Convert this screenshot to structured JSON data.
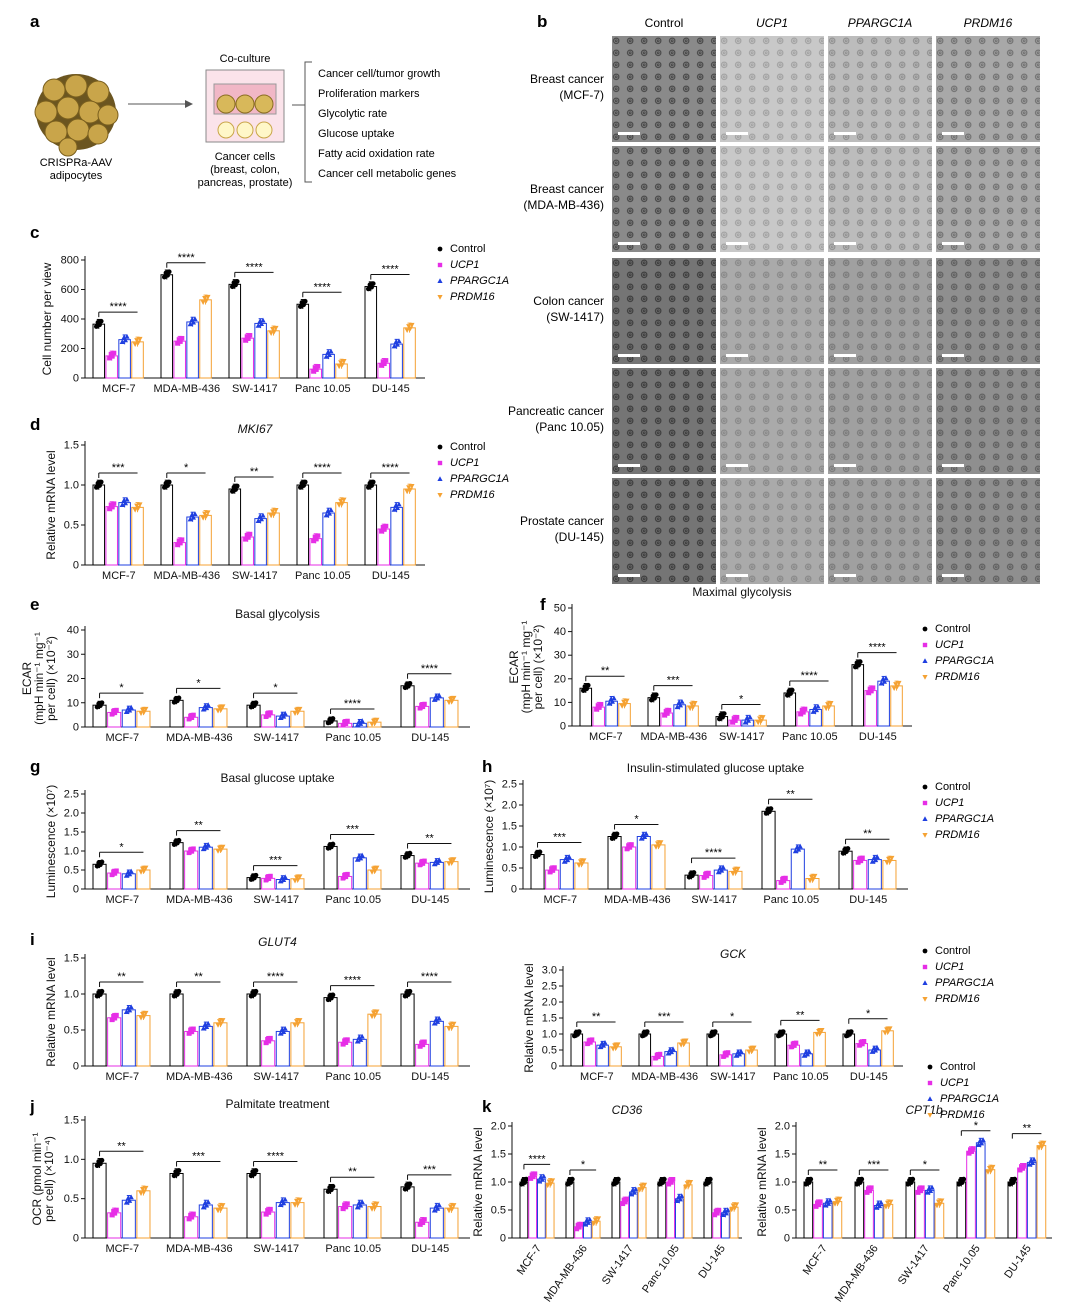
{
  "colors": {
    "control": "#000000",
    "ucp1": "#e62ee6",
    "ppargc1a": "#1f3fe0",
    "prdm16": "#f5a233"
  },
  "panel_letters": [
    "a",
    "b",
    "c",
    "d",
    "e",
    "f",
    "g",
    "h",
    "i",
    "j",
    "k"
  ],
  "schematic": {
    "coculture": "Co-culture",
    "adipocytes": [
      "CRISPRa-AAV",
      "adipocytes"
    ],
    "cancer_cells": [
      "Cancer cells",
      "(breast, colon,",
      "pancreas, prostate)"
    ],
    "readouts": [
      "Cancer cell/tumor growth",
      "Proliferation markers",
      "Glycolytic rate",
      "Glucose uptake",
      "Fatty acid oxidation rate",
      "Cancer cell metabolic genes"
    ]
  },
  "micrographs": {
    "columns": [
      "Control",
      "UCP1",
      "PPARGC1A",
      "PRDM16"
    ],
    "rows": [
      [
        "Breast cancer",
        "(MCF-7)"
      ],
      [
        "Breast cancer",
        "(MDA-MB-436)"
      ],
      [
        "Colon cancer",
        "(SW-1417)"
      ],
      [
        "Pancreatic cancer",
        "(Panc 10.05)"
      ],
      [
        "Prostate cancer",
        "(DU-145)"
      ]
    ]
  },
  "legend": [
    "Control",
    "UCP1",
    "PPARGC1A",
    "PRDM16"
  ],
  "cell_lines": [
    "MCF-7",
    "MDA-MB-436",
    "SW-1417",
    "Panc 10.05",
    "DU-145"
  ],
  "chart_data": [
    {
      "id": "c",
      "type": "bar",
      "title": "",
      "ylabel": "Cell number per view",
      "ylim": [
        0,
        800
      ],
      "yticks": [
        0,
        200,
        400,
        600,
        800
      ],
      "categories": [
        "MCF-7",
        "MDA-MB-436",
        "SW-1417",
        "Panc 10.05",
        "DU-145"
      ],
      "series": [
        {
          "name": "Control",
          "values": [
            365,
            700,
            635,
            500,
            620
          ]
        },
        {
          "name": "UCP1",
          "values": [
            150,
            250,
            270,
            60,
            100
          ]
        },
        {
          "name": "PPARGC1A",
          "values": [
            260,
            380,
            370,
            160,
            230
          ]
        },
        {
          "name": "PRDM16",
          "values": [
            245,
            530,
            320,
            95,
            340
          ]
        }
      ],
      "annotations": [
        "****",
        "****",
        "****",
        "****",
        "****"
      ]
    },
    {
      "id": "d",
      "type": "bar",
      "title": "MKI67",
      "ylabel": "Relative mRNA level",
      "ylim": [
        0,
        1.5
      ],
      "yticks": [
        0,
        0.5,
        1.0,
        1.5
      ],
      "categories": [
        "MCF-7",
        "MDA-MB-436",
        "SW-1417",
        "Panc 10.05",
        "DU-145"
      ],
      "series": [
        {
          "name": "Control",
          "values": [
            1.0,
            1.0,
            0.95,
            1.0,
            1.0
          ]
        },
        {
          "name": "UCP1",
          "values": [
            0.73,
            0.28,
            0.35,
            0.33,
            0.45
          ]
        },
        {
          "name": "PPARGC1A",
          "values": [
            0.78,
            0.6,
            0.58,
            0.65,
            0.72
          ]
        },
        {
          "name": "PRDM16",
          "values": [
            0.72,
            0.62,
            0.65,
            0.78,
            0.95
          ]
        }
      ],
      "annotations": [
        "***",
        "*",
        "**",
        "****",
        "****",
        "***",
        "****",
        "***",
        "****"
      ]
    },
    {
      "id": "e",
      "type": "bar",
      "title": "Basal glycolysis",
      "ylabel": "ECAR (mpH min⁻¹ mg⁻¹ per cell) (×10⁻²)",
      "ylim": [
        0,
        40
      ],
      "yticks": [
        0,
        10,
        20,
        30,
        40
      ],
      "categories": [
        "MCF-7",
        "MDA-MB-436",
        "SW-1417",
        "Panc 10.05",
        "DU-145"
      ],
      "series": [
        {
          "name": "Control",
          "values": [
            9,
            11,
            9,
            2.5,
            17
          ]
        },
        {
          "name": "UCP1",
          "values": [
            6,
            4,
            5,
            1.5,
            8.5
          ]
        },
        {
          "name": "PPARGC1A",
          "values": [
            7,
            8,
            4.5,
            1.5,
            12
          ]
        },
        {
          "name": "PRDM16",
          "values": [
            6.5,
            7.5,
            6.5,
            2,
            11
          ]
        }
      ],
      "annotations": [
        "*",
        "*",
        "*",
        "****",
        "****",
        "**",
        "****",
        "***",
        "****",
        "**"
      ]
    },
    {
      "id": "f",
      "type": "bar",
      "title": "Maximal glycolysis",
      "ylabel": "ECAR (mpH min⁻¹ mg⁻¹ per cell) (×10⁻²)",
      "ylim": [
        0,
        50
      ],
      "yticks": [
        0,
        10,
        20,
        30,
        40,
        50
      ],
      "categories": [
        "MCF-7",
        "MDA-MB-436",
        "SW-1417",
        "Panc 10.05",
        "DU-145"
      ],
      "series": [
        {
          "name": "Control",
          "values": [
            16,
            12,
            4,
            14,
            26
          ]
        },
        {
          "name": "UCP1",
          "values": [
            8,
            5.5,
            2.5,
            6,
            15
          ]
        },
        {
          "name": "PPARGC1A",
          "values": [
            10.5,
            9,
            2.5,
            7,
            19
          ]
        },
        {
          "name": "PRDM16",
          "values": [
            9.5,
            8.5,
            2.5,
            8.5,
            17
          ]
        }
      ],
      "annotations": [
        "**",
        "***",
        "*",
        "****",
        "****",
        "***",
        "****",
        "****",
        "*"
      ]
    },
    {
      "id": "g",
      "type": "bar",
      "title": "Basal glucose uptake",
      "ylabel": "Luminescence (×10⁷)",
      "ylim": [
        0,
        2.5
      ],
      "yticks": [
        0,
        0.5,
        1.0,
        1.5,
        2.0,
        2.5
      ],
      "categories": [
        "MCF-7",
        "MDA-MB-436",
        "SW-1417",
        "Panc 10.05",
        "DU-145"
      ],
      "series": [
        {
          "name": "Control",
          "values": [
            0.65,
            1.22,
            0.3,
            1.12,
            0.88
          ]
        },
        {
          "name": "UCP1",
          "values": [
            0.42,
            1.0,
            0.28,
            0.33,
            0.68
          ]
        },
        {
          "name": "PPARGC1A",
          "values": [
            0.4,
            1.1,
            0.25,
            0.82,
            0.7
          ]
        },
        {
          "name": "PRDM16",
          "values": [
            0.5,
            1.05,
            0.27,
            0.5,
            0.72
          ]
        }
      ],
      "annotations": [
        "*",
        "**",
        "***",
        "***",
        "**",
        "*",
        "**",
        "****",
        "***",
        "****",
        "**"
      ]
    },
    {
      "id": "h",
      "type": "bar",
      "title": "Insulin-stimulated glucose uptake",
      "ylabel": "Luminescence (×10⁷)",
      "ylim": [
        0,
        2.5
      ],
      "yticks": [
        0,
        0.5,
        1.0,
        1.5,
        2.0,
        2.5
      ],
      "categories": [
        "MCF-7",
        "MDA-MB-436",
        "SW-1417",
        "Panc 10.05",
        "DU-145"
      ],
      "series": [
        {
          "name": "Control",
          "values": [
            0.82,
            1.25,
            0.33,
            1.85,
            0.9
          ]
        },
        {
          "name": "UCP1",
          "values": [
            0.45,
            1.0,
            0.32,
            0.2,
            0.68
          ]
        },
        {
          "name": "PPARGC1A",
          "values": [
            0.7,
            1.25,
            0.45,
            0.95,
            0.7
          ]
        },
        {
          "name": "PRDM16",
          "values": [
            0.62,
            1.05,
            0.42,
            0.25,
            0.68
          ]
        }
      ],
      "annotations": [
        "***",
        "*",
        "****",
        "**",
        "**",
        "**",
        "***",
        "****",
        "**",
        "*",
        "**"
      ]
    },
    {
      "id": "i1",
      "type": "bar",
      "title": "GLUT4",
      "ylabel": "Relative mRNA level",
      "ylim": [
        0,
        1.5
      ],
      "yticks": [
        0,
        0.5,
        1.0,
        1.5
      ],
      "categories": [
        "MCF-7",
        "MDA-MB-436",
        "SW-1417",
        "Panc 10.05",
        "DU-145"
      ],
      "series": [
        {
          "name": "Control",
          "values": [
            1.0,
            1.0,
            1.0,
            0.95,
            1.0
          ]
        },
        {
          "name": "UCP1",
          "values": [
            0.67,
            0.48,
            0.35,
            0.33,
            0.3
          ]
        },
        {
          "name": "PPARGC1A",
          "values": [
            0.78,
            0.55,
            0.48,
            0.37,
            0.62
          ]
        },
        {
          "name": "PRDM16",
          "values": [
            0.7,
            0.6,
            0.6,
            0.72,
            0.55
          ]
        }
      ],
      "annotations": [
        "**",
        "**",
        "****",
        "****",
        "****",
        "***",
        "**",
        "****"
      ]
    },
    {
      "id": "i2",
      "type": "bar",
      "title": "GCK",
      "ylabel": "Relative mRNA level",
      "ylim": [
        0,
        3.0
      ],
      "yticks": [
        0,
        0.5,
        1.0,
        1.5,
        2.0,
        2.5,
        3.0
      ],
      "categories": [
        "MCF-7",
        "MDA-MB-436",
        "SW-1417",
        "Panc 10.05",
        "DU-145"
      ],
      "series": [
        {
          "name": "Control",
          "values": [
            1.0,
            1.0,
            1.0,
            1.0,
            1.0
          ]
        },
        {
          "name": "UCP1",
          "values": [
            0.75,
            0.3,
            0.35,
            0.65,
            0.7
          ]
        },
        {
          "name": "PPARGC1A",
          "values": [
            0.65,
            0.45,
            0.38,
            0.38,
            0.5
          ]
        },
        {
          "name": "PRDM16",
          "values": [
            0.6,
            0.72,
            0.5,
            1.05,
            1.1
          ]
        }
      ],
      "annotations": [
        "**",
        "***",
        "*",
        "**",
        "*"
      ]
    },
    {
      "id": "j",
      "type": "bar",
      "title": "Palmitate treatment",
      "ylabel": "OCR (pmol min⁻¹ per cell) (×10⁻⁴)",
      "ylim": [
        0,
        1.5
      ],
      "yticks": [
        0,
        0.5,
        1.0,
        1.5
      ],
      "categories": [
        "MCF-7",
        "MDA-MB-436",
        "SW-1417",
        "Panc 10.05",
        "DU-145"
      ],
      "series": [
        {
          "name": "Control",
          "values": [
            0.95,
            0.82,
            0.82,
            0.62,
            0.65
          ]
        },
        {
          "name": "UCP1",
          "values": [
            0.32,
            0.27,
            0.33,
            0.4,
            0.2
          ]
        },
        {
          "name": "PPARGC1A",
          "values": [
            0.48,
            0.42,
            0.45,
            0.42,
            0.38
          ]
        },
        {
          "name": "PRDM16",
          "values": [
            0.6,
            0.38,
            0.45,
            0.4,
            0.38
          ]
        }
      ],
      "annotations": [
        "**",
        "***",
        "****",
        "**",
        "***",
        "****",
        "****",
        "***",
        "****"
      ]
    },
    {
      "id": "k1",
      "type": "bar",
      "title": "CD36",
      "ylabel": "Relative mRNA level",
      "ylim": [
        0,
        2.0
      ],
      "yticks": [
        0,
        0.5,
        1.0,
        1.5,
        2.0
      ],
      "categories": [
        "MCF-7",
        "MDA-MB-436",
        "SW-1417",
        "Panc 10.05",
        "DU-145"
      ],
      "series": [
        {
          "name": "Control",
          "values": [
            1.0,
            1.0,
            1.0,
            1.0,
            1.0
          ]
        },
        {
          "name": "UCP1",
          "values": [
            1.1,
            0.2,
            0.65,
            1.0,
            0.45
          ]
        },
        {
          "name": "PPARGC1A",
          "values": [
            1.05,
            0.28,
            0.82,
            0.7,
            0.45
          ]
        },
        {
          "name": "PRDM16",
          "values": [
            0.98,
            0.3,
            0.9,
            0.95,
            0.55
          ]
        }
      ],
      "annotations": [
        "****",
        "*"
      ]
    },
    {
      "id": "k2",
      "type": "bar",
      "title": "CPT1b",
      "ylabel": "Relative mRNA level",
      "ylim": [
        0,
        2.0
      ],
      "yticks": [
        0,
        0.5,
        1.0,
        1.5,
        2.0
      ],
      "categories": [
        "MCF-7",
        "MDA-MB-436",
        "SW-1417",
        "Panc 10.05",
        "DU-145"
      ],
      "series": [
        {
          "name": "Control",
          "values": [
            1.0,
            1.0,
            1.0,
            1.0,
            1.0
          ]
        },
        {
          "name": "UCP1",
          "values": [
            0.6,
            0.85,
            0.85,
            1.55,
            1.25
          ]
        },
        {
          "name": "PPARGC1A",
          "values": [
            0.62,
            0.58,
            0.85,
            1.7,
            1.35
          ]
        },
        {
          "name": "PRDM16",
          "values": [
            0.65,
            0.6,
            0.62,
            1.22,
            1.65
          ]
        }
      ],
      "annotations": [
        "**",
        "***",
        "*",
        "*",
        "**"
      ]
    }
  ]
}
